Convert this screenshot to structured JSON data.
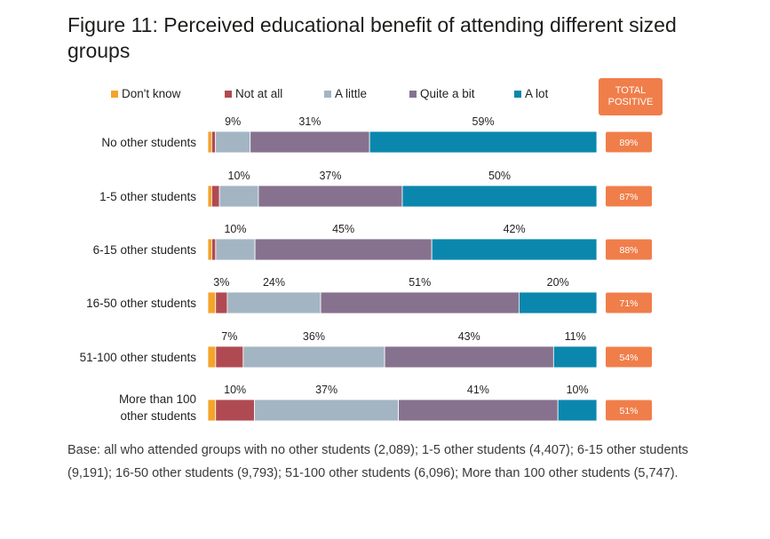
{
  "title": "Figure 11: Perceived educational benefit of attending different sized groups",
  "base_note": "Base: all who attended groups with no other students (2,089); 1-5 other students (4,407); 6-15 other students (9,191); 16-50 other students (9,793); 51-100 other students (6,096); More than 100 other students (5,747).",
  "total_header": [
    "TOTAL",
    "POSITIVE"
  ],
  "colors": {
    "dont_know": "#f4a42a",
    "not_at_all": "#b04a52",
    "a_little": "#a3b5c3",
    "quite_a_bit": "#86728e",
    "a_lot": "#0b87ad",
    "total_box": "#f07e4a"
  },
  "chart_data": {
    "type": "bar",
    "orientation": "horizontal",
    "stacked": true,
    "title": "Figure 11: Perceived educational benefit of attending different sized groups",
    "categories": [
      "No other students",
      "1-5 other students",
      "6-15 other students",
      "16-50 other students",
      "51-100 other students",
      "More than 100 other students"
    ],
    "series": [
      {
        "name": "Don't know",
        "key": "dont_know",
        "values": [
          1,
          1,
          1,
          2,
          2,
          2
        ],
        "labels": [
          "",
          "",
          "",
          "",
          "",
          ""
        ]
      },
      {
        "name": "Not at all",
        "key": "not_at_all",
        "values": [
          1,
          2,
          1,
          3,
          7,
          10
        ],
        "labels": [
          "",
          "",
          "",
          "3%",
          "7%",
          "10%"
        ]
      },
      {
        "name": "A little",
        "key": "a_little",
        "values": [
          9,
          10,
          10,
          24,
          36,
          37
        ],
        "labels": [
          "9%",
          "10%",
          "10%",
          "24%",
          "36%",
          "37%"
        ]
      },
      {
        "name": "Quite a bit",
        "key": "quite_a_bit",
        "values": [
          31,
          37,
          45,
          51,
          43,
          41
        ],
        "labels": [
          "31%",
          "37%",
          "45%",
          "51%",
          "43%",
          "41%"
        ]
      },
      {
        "name": "A lot",
        "key": "a_lot",
        "values": [
          59,
          50,
          42,
          20,
          11,
          10
        ],
        "labels": [
          "59%",
          "50%",
          "42%",
          "20%",
          "11%",
          "10%"
        ]
      }
    ],
    "total_positive": [
      "89%",
      "87%",
      "88%",
      "71%",
      "54%",
      "51%"
    ],
    "legend_position": "top",
    "xlim": [
      0,
      100
    ],
    "xlabel": "",
    "ylabel": ""
  }
}
